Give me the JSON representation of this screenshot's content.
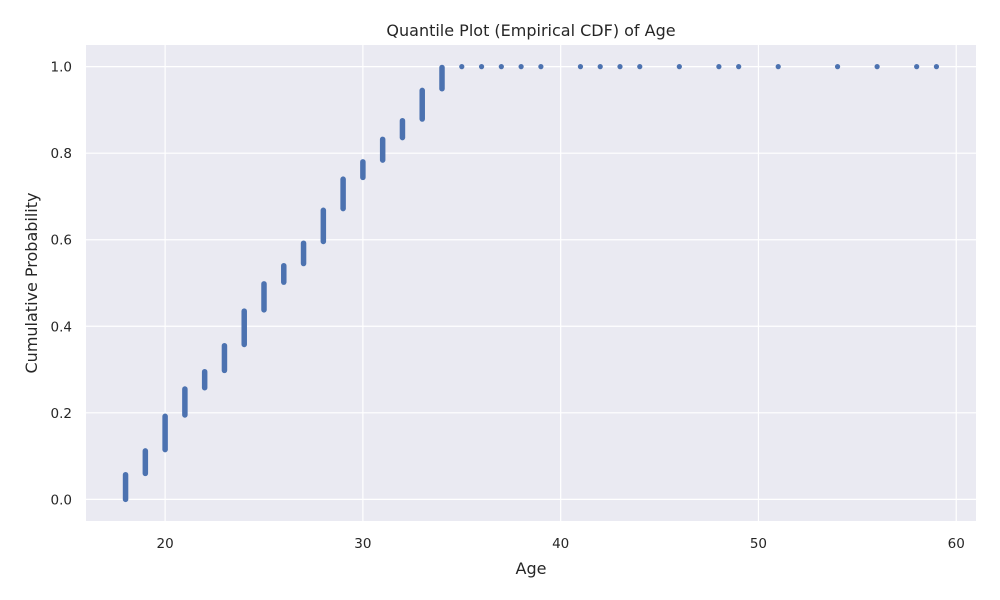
{
  "chart_data": {
    "type": "scatter",
    "title": "Quantile Plot (Empirical CDF) of Age",
    "xlabel": "Age",
    "ylabel": "Cumulative Probability",
    "xlim": [
      16,
      61
    ],
    "ylim": [
      -0.05,
      1.05
    ],
    "xticks": [
      20,
      30,
      40,
      50,
      60
    ],
    "yticks": [
      0.0,
      0.2,
      0.4,
      0.6,
      0.8,
      1.0
    ],
    "ytick_labels": [
      "0.0",
      "0.2",
      "0.4",
      "0.6",
      "0.8",
      "1.0"
    ],
    "grid": true,
    "marker_color": "#4c72b0",
    "background_color": "#eaeaf2",
    "grid_color": "#ffffff",
    "segments": [
      {
        "age": 18,
        "p_start": 0.0,
        "p_end": 0.057
      },
      {
        "age": 19,
        "p_start": 0.06,
        "p_end": 0.112
      },
      {
        "age": 20,
        "p_start": 0.115,
        "p_end": 0.192
      },
      {
        "age": 21,
        "p_start": 0.195,
        "p_end": 0.255
      },
      {
        "age": 22,
        "p_start": 0.258,
        "p_end": 0.295
      },
      {
        "age": 23,
        "p_start": 0.298,
        "p_end": 0.355
      },
      {
        "age": 24,
        "p_start": 0.358,
        "p_end": 0.435
      },
      {
        "age": 25,
        "p_start": 0.438,
        "p_end": 0.498
      },
      {
        "age": 26,
        "p_start": 0.502,
        "p_end": 0.54
      },
      {
        "age": 27,
        "p_start": 0.545,
        "p_end": 0.592
      },
      {
        "age": 28,
        "p_start": 0.596,
        "p_end": 0.668
      },
      {
        "age": 29,
        "p_start": 0.672,
        "p_end": 0.74
      },
      {
        "age": 30,
        "p_start": 0.744,
        "p_end": 0.78
      },
      {
        "age": 31,
        "p_start": 0.784,
        "p_end": 0.832
      },
      {
        "age": 32,
        "p_start": 0.836,
        "p_end": 0.875
      },
      {
        "age": 33,
        "p_start": 0.879,
        "p_end": 0.945
      },
      {
        "age": 34,
        "p_start": 0.949,
        "p_end": 0.998
      }
    ],
    "tail_points": [
      {
        "age": 35,
        "p": 1.0
      },
      {
        "age": 36,
        "p": 1.0
      },
      {
        "age": 37,
        "p": 1.0
      },
      {
        "age": 38,
        "p": 1.0
      },
      {
        "age": 39,
        "p": 1.0
      },
      {
        "age": 41,
        "p": 1.0
      },
      {
        "age": 42,
        "p": 1.0
      },
      {
        "age": 43,
        "p": 1.0
      },
      {
        "age": 44,
        "p": 1.0
      },
      {
        "age": 46,
        "p": 1.0
      },
      {
        "age": 48,
        "p": 1.0
      },
      {
        "age": 49,
        "p": 1.0
      },
      {
        "age": 51,
        "p": 1.0
      },
      {
        "age": 54,
        "p": 1.0
      },
      {
        "age": 56,
        "p": 1.0
      },
      {
        "age": 58,
        "p": 1.0
      },
      {
        "age": 59,
        "p": 1.0
      }
    ]
  }
}
